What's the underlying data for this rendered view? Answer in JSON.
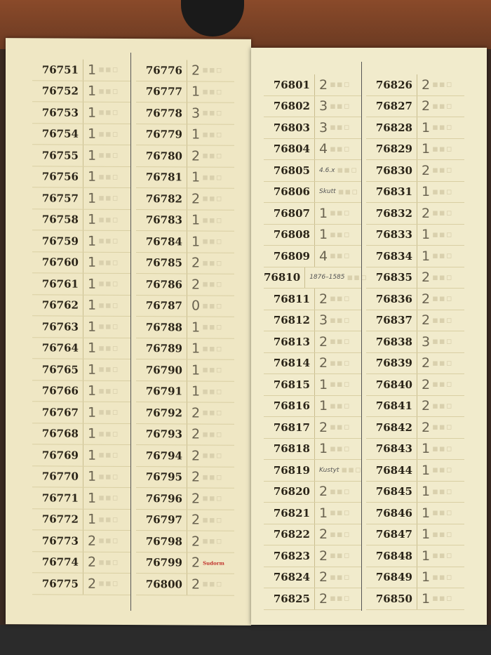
{
  "left_page": {
    "columns": [
      {
        "rows": [
          [
            "76751",
            "1"
          ],
          [
            "76752",
            "1"
          ],
          [
            "76753",
            "1"
          ],
          [
            "76754",
            "1"
          ],
          [
            "76755",
            "1"
          ],
          [
            "76756",
            "1"
          ],
          [
            "76757",
            "1"
          ],
          [
            "76758",
            "1"
          ],
          [
            "76759",
            "1"
          ],
          [
            "76760",
            "1"
          ],
          [
            "76761",
            "1"
          ],
          [
            "76762",
            "1"
          ],
          [
            "76763",
            "1"
          ],
          [
            "76764",
            "1"
          ],
          [
            "76765",
            "1"
          ],
          [
            "76766",
            "1"
          ],
          [
            "76767",
            "1"
          ],
          [
            "76768",
            "1"
          ],
          [
            "76769",
            "1"
          ],
          [
            "76770",
            "1"
          ],
          [
            "76771",
            "1"
          ],
          [
            "76772",
            "1"
          ],
          [
            "76773",
            "2"
          ],
          [
            "76774",
            "2"
          ],
          [
            "76775",
            "2"
          ]
        ]
      },
      {
        "rows": [
          [
            "76776",
            "2"
          ],
          [
            "76777",
            "1"
          ],
          [
            "76778",
            "3"
          ],
          [
            "76779",
            "1"
          ],
          [
            "76780",
            "2"
          ],
          [
            "76781",
            "1"
          ],
          [
            "76782",
            "2"
          ],
          [
            "76783",
            "1"
          ],
          [
            "76784",
            "1"
          ],
          [
            "76785",
            "2"
          ],
          [
            "76786",
            "2"
          ],
          [
            "76787",
            "0"
          ],
          [
            "76788",
            "1"
          ],
          [
            "76789",
            "1"
          ],
          [
            "76790",
            "1"
          ],
          [
            "76791",
            "1"
          ],
          [
            "76792",
            "2"
          ],
          [
            "76793",
            "2"
          ],
          [
            "76794",
            "2"
          ],
          [
            "76795",
            "2"
          ],
          [
            "76796",
            "2"
          ],
          [
            "76797",
            "2"
          ],
          [
            "76798",
            "2"
          ],
          [
            "76799",
            "2"
          ],
          [
            "76800",
            "2"
          ]
        ]
      }
    ],
    "stamp": {
      "row": "76799",
      "text": "Sudorm",
      "color": "#c0302a"
    }
  },
  "right_page": {
    "columns": [
      {
        "rows": [
          [
            "76801",
            "2"
          ],
          [
            "76802",
            "3"
          ],
          [
            "76803",
            "3"
          ],
          [
            "76804",
            "4"
          ],
          [
            "76805",
            "4.6.x"
          ],
          [
            "76806",
            "Skutt"
          ],
          [
            "76807",
            "1"
          ],
          [
            "76808",
            "1"
          ],
          [
            "76809",
            "4"
          ],
          [
            "76810",
            "1876–1585"
          ],
          [
            "76811",
            "2"
          ],
          [
            "76812",
            "3"
          ],
          [
            "76813",
            "2"
          ],
          [
            "76814",
            "2"
          ],
          [
            "76815",
            "1"
          ],
          [
            "76816",
            "1"
          ],
          [
            "76817",
            "2"
          ],
          [
            "76818",
            "1"
          ],
          [
            "76819",
            "Kustyt"
          ],
          [
            "76820",
            "2"
          ],
          [
            "76821",
            "1"
          ],
          [
            "76822",
            "2"
          ],
          [
            "76823",
            "2"
          ],
          [
            "76824",
            "2"
          ],
          [
            "76825",
            "2"
          ]
        ]
      },
      {
        "rows": [
          [
            "76826",
            "2"
          ],
          [
            "76827",
            "2"
          ],
          [
            "76828",
            "1"
          ],
          [
            "76829",
            "1"
          ],
          [
            "76830",
            "2"
          ],
          [
            "76831",
            "1"
          ],
          [
            "76832",
            "2"
          ],
          [
            "76833",
            "1"
          ],
          [
            "76834",
            "1"
          ],
          [
            "76835",
            "2"
          ],
          [
            "76836",
            "2"
          ],
          [
            "76837",
            "2"
          ],
          [
            "76838",
            "3"
          ],
          [
            "76839",
            "2"
          ],
          [
            "76840",
            "2"
          ],
          [
            "76841",
            "2"
          ],
          [
            "76842",
            "2"
          ],
          [
            "76843",
            "1"
          ],
          [
            "76844",
            "1"
          ],
          [
            "76845",
            "1"
          ],
          [
            "76846",
            "1"
          ],
          [
            "76847",
            "1"
          ],
          [
            "76848",
            "1"
          ],
          [
            "76849",
            "1"
          ],
          [
            "76850",
            "1"
          ]
        ]
      }
    ]
  }
}
